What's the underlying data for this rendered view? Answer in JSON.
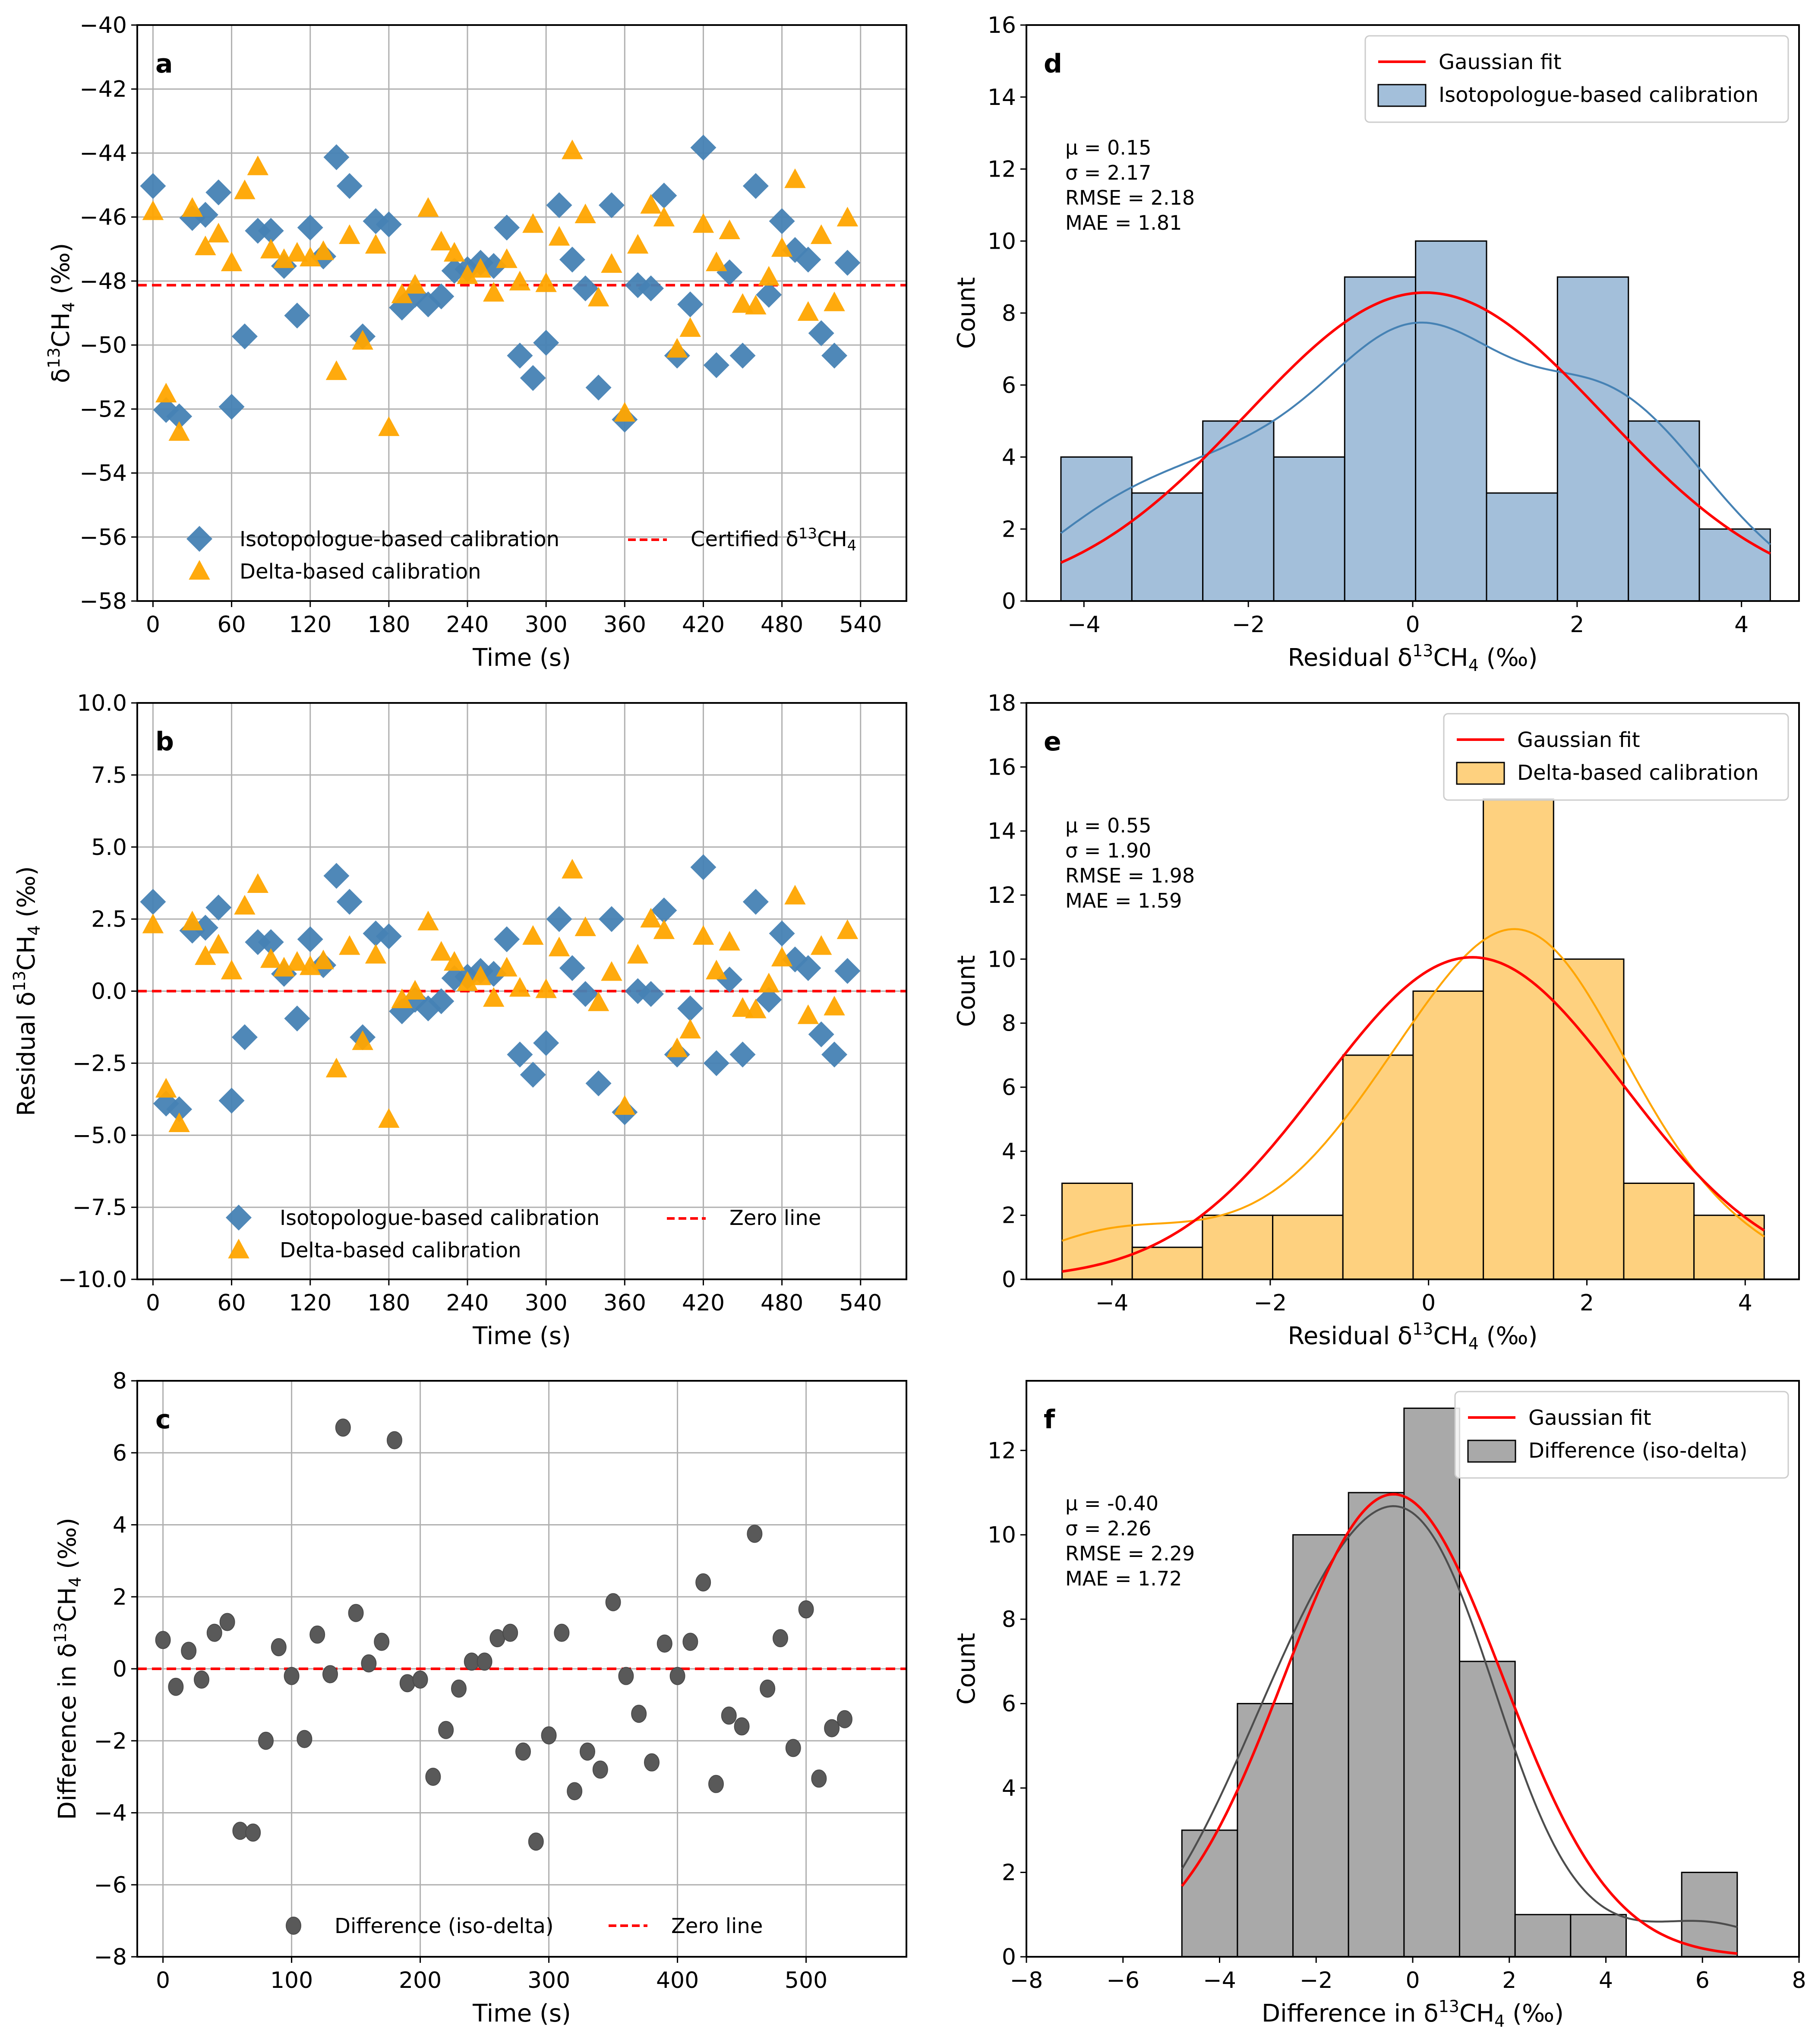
{
  "chart_data": [
    {
      "id": "a",
      "type": "scatter",
      "panel_label": "a",
      "xlabel": "Time (s)",
      "ylabel": "δ13CH4 (‰)",
      "xlim": [
        -12,
        575
      ],
      "ylim": [
        -58,
        -40
      ],
      "xticks": [
        0,
        60,
        120,
        180,
        240,
        300,
        360,
        420,
        480,
        540
      ],
      "yticks": [
        -58,
        -56,
        -54,
        -52,
        -50,
        -48,
        -46,
        -44,
        -42,
        -40
      ],
      "grid": true,
      "legend": {
        "position": "lower-center",
        "entries": [
          "Isotopologue-based calibration",
          "Delta-based calibration",
          "Certified δ13CH4"
        ]
      },
      "hline": {
        "value": -48.13,
        "label": "Certified δ13CH4",
        "color": "#ff0000",
        "style": "dashed"
      },
      "series": [
        {
          "name": "Isotopologue-based calibration",
          "marker": "diamond",
          "color": "#4682b4",
          "values": "iso_abs"
        },
        {
          "name": "Delta-based calibration",
          "marker": "triangle",
          "color": "#ffa500",
          "values": "delta_abs"
        }
      ]
    },
    {
      "id": "b",
      "type": "scatter",
      "panel_label": "b",
      "xlabel": "Time (s)",
      "ylabel": "Residual δ13CH4 (‰)",
      "xlim": [
        -12,
        575
      ],
      "ylim": [
        -10,
        10
      ],
      "xticks": [
        0,
        60,
        120,
        180,
        240,
        300,
        360,
        420,
        480,
        540
      ],
      "yticks": [
        -10.0,
        -7.5,
        -5.0,
        -2.5,
        0.0,
        2.5,
        5.0,
        7.5,
        10.0
      ],
      "grid": true,
      "legend": {
        "position": "lower-center",
        "entries": [
          "Isotopologue-based calibration",
          "Delta-based calibration",
          "Zero line"
        ]
      },
      "hline": {
        "value": 0,
        "label": "Zero line",
        "color": "#ff0000",
        "style": "dashed"
      }
    },
    {
      "id": "c",
      "type": "scatter",
      "panel_label": "c",
      "xlabel": "Time (s)",
      "ylabel": "Difference in δ13CH4 (‰)",
      "xlim": [
        -20,
        578
      ],
      "ylim": [
        -8,
        8
      ],
      "xticks": [
        0,
        100,
        200,
        300,
        400,
        500
      ],
      "yticks": [
        -8,
        -6,
        -4,
        -2,
        0,
        2,
        4,
        6,
        8
      ],
      "grid": true,
      "legend": {
        "position": "lower-center",
        "entries": [
          "Difference (iso-delta)",
          "Zero line"
        ]
      },
      "hline": {
        "value": 0,
        "label": "Zero line",
        "color": "#ff0000",
        "style": "dashed"
      }
    },
    {
      "id": "d",
      "type": "bar",
      "panel_label": "d",
      "xlabel": "Residual δ13CH4 (‰)",
      "ylabel": "Count",
      "xlim": [
        -4.7,
        4.7
      ],
      "ylim": [
        0,
        16
      ],
      "xticks": [
        -4,
        -2,
        0,
        2,
        4
      ],
      "yticks": [
        0,
        2,
        4,
        6,
        8,
        10,
        12,
        14,
        16
      ],
      "bin_range": [
        -4.28,
        4.35
      ],
      "counts": [
        4,
        3,
        5,
        4,
        9,
        10,
        3,
        9,
        5,
        2
      ],
      "fill": "#a3bfda",
      "kde_color": "#4682b4",
      "gauss": {
        "mu": 0.15,
        "sigma": 2.17
      },
      "legend": {
        "position": "top-right",
        "entries": [
          "Gaussian fit",
          "Isotopologue-based calibration"
        ]
      },
      "stats": [
        "μ = 0.15",
        "σ = 2.17",
        "RMSE = 2.18",
        "MAE = 1.81"
      ]
    },
    {
      "id": "e",
      "type": "bar",
      "panel_label": "e",
      "xlabel": "Residual δ13CH4 (‰)",
      "ylabel": "Count",
      "xlim": [
        -5.08,
        4.68
      ],
      "ylim": [
        0,
        18
      ],
      "xticks": [
        -4,
        -2,
        0,
        2,
        4
      ],
      "yticks": [
        0,
        2,
        4,
        6,
        8,
        10,
        12,
        14,
        16,
        18
      ],
      "bin_range": [
        -4.63,
        4.24
      ],
      "counts": [
        3,
        1,
        2,
        2,
        7,
        9,
        15,
        10,
        3,
        2
      ],
      "fill": "#fed17f",
      "kde_color": "#ffa500",
      "gauss": {
        "mu": 0.55,
        "sigma": 1.9
      },
      "legend": {
        "position": "top-right",
        "entries": [
          "Gaussian fit",
          "Delta-based calibration"
        ]
      },
      "stats": [
        "μ = 0.55",
        "σ = 1.90",
        "RMSE = 1.98",
        "MAE = 1.59"
      ]
    },
    {
      "id": "f",
      "type": "bar",
      "panel_label": "f",
      "xlabel": "Difference in δ13CH4 (‰)",
      "ylabel": "Count",
      "xlim": [
        -8,
        8
      ],
      "ylim": [
        0,
        13.65
      ],
      "xticks": [
        -8,
        -6,
        -4,
        -2,
        0,
        2,
        4,
        6,
        8
      ],
      "yticks": [
        0,
        2,
        4,
        6,
        8,
        10,
        12
      ],
      "bin_range": [
        -4.78,
        6.72
      ],
      "counts": [
        3,
        6,
        10,
        11,
        13,
        7,
        1,
        1,
        0,
        2
      ],
      "fill": "#a9a9a9",
      "kde_color": "#4d4d4d",
      "gauss": {
        "mu": -0.4,
        "sigma": 2.26
      },
      "legend": {
        "position": "top-right",
        "entries": [
          "Gaussian fit",
          "Difference (iso-delta)"
        ]
      },
      "stats": [
        "μ = -0.40",
        "σ = 2.26",
        "RMSE = 2.29",
        "MAE = 1.72"
      ]
    }
  ],
  "series_data": {
    "certified": -48.13,
    "time": [
      0,
      10,
      20,
      30,
      40,
      50,
      60,
      70,
      80,
      90,
      100,
      110,
      120,
      130,
      140,
      150,
      160,
      170,
      180,
      190,
      200,
      210,
      220,
      230,
      240,
      250,
      260,
      270,
      280,
      290,
      300,
      310,
      320,
      330,
      340,
      350,
      360,
      370,
      380,
      390,
      400,
      410,
      420,
      430,
      440,
      450,
      460,
      470,
      480,
      490,
      500,
      510,
      520,
      530
    ],
    "iso_residual": [
      3.1,
      -3.9,
      -4.1,
      2.1,
      2.2,
      2.9,
      -3.8,
      -1.6,
      1.7,
      1.7,
      0.6,
      -0.95,
      1.8,
      0.9,
      4.0,
      3.1,
      -1.6,
      2.0,
      1.9,
      -0.7,
      -0.3,
      -0.6,
      -0.35,
      0.45,
      0.5,
      0.7,
      0.6,
      1.8,
      -2.2,
      -2.9,
      -1.8,
      2.5,
      0.8,
      -0.1,
      -3.2,
      2.5,
      -4.2,
      0.0,
      -0.1,
      2.8,
      -2.2,
      -0.6,
      4.3,
      -2.5,
      0.4,
      -2.2,
      3.1,
      -0.3,
      2.0,
      1.1,
      0.8,
      -1.5,
      -2.2,
      0.7
    ],
    "difference": [
      0.8,
      -0.5,
      0.5,
      -0.3,
      1.0,
      1.3,
      -4.5,
      -4.55,
      -2.0,
      0.6,
      -0.2,
      -1.95,
      0.95,
      -0.15,
      6.7,
      1.55,
      0.15,
      0.75,
      6.35,
      -0.4,
      -0.3,
      -3.0,
      -1.7,
      -0.55,
      0.2,
      0.2,
      0.85,
      1.0,
      -2.3,
      -4.8,
      -1.85,
      1.0,
      -3.4,
      -2.3,
      -2.8,
      1.85,
      -0.2,
      -1.25,
      -2.6,
      0.7,
      -0.2,
      0.75,
      2.4,
      -3.2,
      -1.3,
      -1.6,
      3.75,
      -0.55,
      0.85,
      -2.2,
      1.65,
      -3.05,
      -1.65,
      -1.4
    ]
  },
  "labels": {
    "a": "a",
    "b": "b",
    "c": "c",
    "d": "d",
    "e": "e",
    "f": "f",
    "time_xlabel": "Time (s)",
    "count_label": "Count",
    "ylabel_a_pre": "δ",
    "ylabel_a_sup": "13",
    "ylabel_a_mid": "CH",
    "ylabel_a_sub": "4",
    "ylabel_a_post": " (‰)",
    "ylabel_b_pre": "Residual δ",
    "ylabel_c_pre": "Difference in δ",
    "xlabel_de_pre": "Residual δ",
    "xlabel_f_pre": "Difference in δ",
    "legend_iso": "Isotopologue-based calibration",
    "legend_delta": "Delta-based calibration",
    "legend_certified_pre": "Certified δ",
    "legend_zero": "Zero line",
    "legend_diff": "Difference (iso-delta)",
    "legend_gauss": "Gaussian fit"
  }
}
